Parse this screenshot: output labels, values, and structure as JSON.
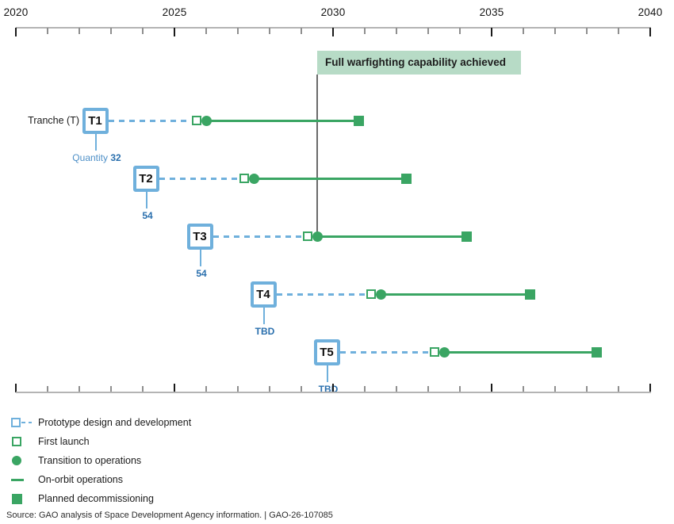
{
  "colors": {
    "tranche_blue": "#6fb0dc",
    "quantity_prefix_blue": "#4d8fc7",
    "quantity_value_blue": "#2a6fad",
    "green": "#3aa563",
    "banner_bg": "#b7dbc6",
    "banner_text": "#1d1d1d",
    "fwc_line": "#6a6a6a"
  },
  "banner": {
    "label": "Full warfighting capability achieved"
  },
  "row_header": {
    "label": "Tranche (T)"
  },
  "quantity_prefix": "Quantity",
  "axis": {
    "min_year": 2020,
    "max_year": 2040,
    "labeled_years": [
      "2020",
      "2025",
      "2030",
      "2035",
      "2040"
    ]
  },
  "legend": {
    "items": [
      {
        "icon": "prototype-dashed-square-icon",
        "label": "Prototype design and development"
      },
      {
        "icon": "first-launch-square-icon",
        "label": "First launch"
      },
      {
        "icon": "transition-circle-icon",
        "label": "Transition to operations"
      },
      {
        "icon": "on-orbit-line-icon",
        "label": "On-orbit operations"
      },
      {
        "icon": "decommissioning-square-icon",
        "label": "Planned decommissioning"
      }
    ]
  },
  "source": {
    "text": "Source: GAO analysis of Space Development Agency information.  |  GAO-26-107085"
  },
  "chart_data": {
    "type": "timeline",
    "title": "",
    "x_axis": {
      "min_year": 2020,
      "max_year": 2040,
      "tick_every_years": 1,
      "labeled_years": [
        2020,
        2025,
        2030,
        2035,
        2040
      ]
    },
    "annotation": {
      "label": "Full warfighting capability achieved",
      "year": 2029.5,
      "line_ends_at": "T3 transition to operations"
    },
    "legend": [
      "Prototype design and development",
      "First launch",
      "Transition to operations",
      "On-orbit operations",
      "Planned decommissioning"
    ],
    "series": [
      {
        "tranche": "T1",
        "quantity": "32",
        "label_year": 2022.5,
        "first_launch_year": 2025.7,
        "transition_to_operations_year": 2026.0,
        "planned_decommissioning_year": 2030.8
      },
      {
        "tranche": "T2",
        "quantity": "54",
        "label_year": 2024.1,
        "first_launch_year": 2027.2,
        "transition_to_operations_year": 2027.5,
        "planned_decommissioning_year": 2032.3
      },
      {
        "tranche": "T3",
        "quantity": "54",
        "label_year": 2025.8,
        "first_launch_year": 2029.2,
        "transition_to_operations_year": 2029.5,
        "planned_decommissioning_year": 2034.2
      },
      {
        "tranche": "T4",
        "quantity": "TBD",
        "label_year": 2027.8,
        "first_launch_year": 2031.2,
        "transition_to_operations_year": 2031.5,
        "planned_decommissioning_year": 2036.2
      },
      {
        "tranche": "T5",
        "quantity": "TBD",
        "label_year": 2029.8,
        "first_launch_year": 2033.2,
        "transition_to_operations_year": 2033.5,
        "planned_decommissioning_year": 2038.3
      }
    ]
  }
}
